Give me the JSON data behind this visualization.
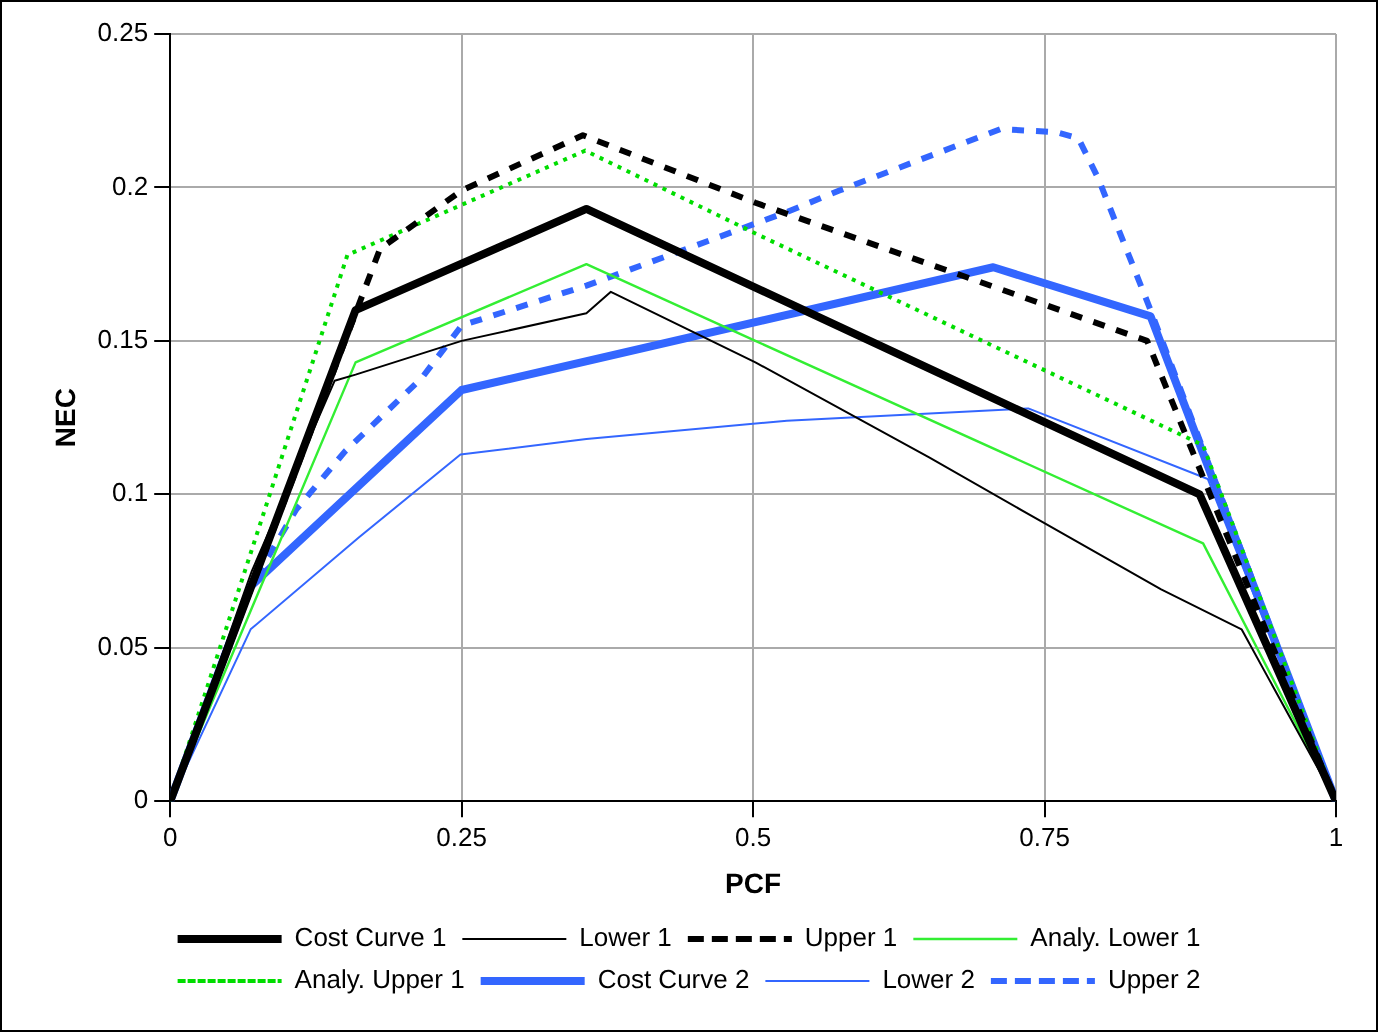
{
  "chart_data": {
    "type": "line",
    "xlabel": "PCF",
    "ylabel": "NEC",
    "xlim": [
      0,
      1
    ],
    "xticks": [
      0,
      {
        "value": 0.25,
        "label": "0.25"
      },
      {
        "value": 0.5,
        "label": "0.5"
      },
      {
        "value": 0.75,
        "label": "0.75"
      },
      1
    ],
    "ylim": [
      0,
      0.25
    ],
    "yticks": [
      0,
      {
        "value": 0.05,
        "label": "0.05"
      },
      {
        "value": 0.1,
        "label": "0.1"
      },
      {
        "value": 0.15,
        "label": "0.15"
      },
      {
        "value": 0.2,
        "label": "0.2"
      },
      {
        "value": 0.25,
        "label": "0.25"
      }
    ],
    "grid": true,
    "legend": "bottom",
    "marker": "none",
    "series": [
      {
        "name": "Cost Curve 1",
        "color": "#000000",
        "line_style": "solid",
        "x": [
          0,
          0.159,
          0.357,
          0.883,
          1
        ],
        "values": [
          0,
          0.16,
          0.193,
          0.1,
          0
        ]
      },
      {
        "name": "Lower 1",
        "color": "#000000",
        "line_style": "solid",
        "x": [
          0,
          0.07,
          0.141,
          0.159,
          0.25,
          0.357,
          0.378,
          0.502,
          0.651,
          0.748,
          0.85,
          0.919,
          1
        ],
        "values": [
          0,
          0.075,
          0.137,
          0.139,
          0.15,
          0.159,
          0.166,
          0.143,
          0.112,
          0.091,
          0.069,
          0.056,
          0
        ]
      },
      {
        "name": "Upper 1",
        "color": "#000000",
        "line_style": "dashed",
        "x": [
          0,
          0.16,
          0.18,
          0.25,
          0.354,
          0.502,
          0.838,
          1
        ],
        "values": [
          0,
          0.16,
          0.18,
          0.199,
          0.217,
          0.195,
          0.15,
          0
        ]
      },
      {
        "name": "Analy. Lower 1",
        "color": "#33ee33",
        "line_style": "solid",
        "x": [
          0,
          0.159,
          0.357,
          0.502,
          0.886,
          1
        ],
        "values": [
          0,
          0.143,
          0.175,
          0.15,
          0.084,
          0
        ]
      },
      {
        "name": "Analy. Upper 1",
        "color": "#00dd00",
        "line_style": "dotted",
        "x": [
          0,
          0.152,
          0.356,
          0.502,
          0.886,
          1
        ],
        "values": [
          0,
          0.178,
          0.212,
          0.185,
          0.116,
          0
        ]
      },
      {
        "name": "Cost Curve 2",
        "color": "#3366ff",
        "line_style": "solid",
        "x": [
          0,
          0.069,
          0.25,
          0.706,
          0.841,
          1
        ],
        "values": [
          0,
          0.07,
          0.134,
          0.174,
          0.158,
          0
        ]
      },
      {
        "name": "Lower 2",
        "color": "#3366ff",
        "line_style": "solid",
        "x": [
          0,
          0.069,
          0.162,
          0.249,
          0.357,
          0.529,
          0.736,
          0.89,
          1
        ],
        "values": [
          0,
          0.056,
          0.086,
          0.113,
          0.118,
          0.124,
          0.128,
          0.105,
          0
        ]
      },
      {
        "name": "Upper 2",
        "color": "#3366ff",
        "line_style": "dashed",
        "x": [
          0,
          0.069,
          0.108,
          0.15,
          0.216,
          0.25,
          0.357,
          0.529,
          0.574,
          0.712,
          0.76,
          0.779,
          0.796,
          0.841,
          1
        ],
        "values": [
          0,
          0.07,
          0.095,
          0.114,
          0.138,
          0.155,
          0.168,
          0.192,
          0.199,
          0.219,
          0.218,
          0.216,
          0.203,
          0.16,
          0
        ]
      }
    ]
  }
}
